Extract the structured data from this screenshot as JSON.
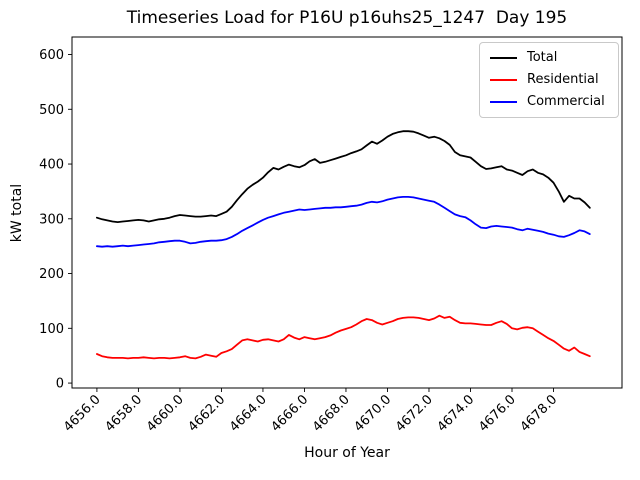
{
  "chart_data": {
    "type": "line",
    "title": "Timeseries Load for P16U p16uhs25_1247  Day 195",
    "xlabel": "Hour of Year",
    "ylabel": "kW total",
    "grid": false,
    "legend_position": "upper right",
    "xlim": [
      4654.8,
      4681.3
    ],
    "ylim": [
      -9,
      632
    ],
    "x_ticks": [
      4656.0,
      4658.0,
      4660.0,
      4662.0,
      4664.0,
      4666.0,
      4668.0,
      4670.0,
      4672.0,
      4674.0,
      4676.0,
      4678.0
    ],
    "x_tick_labels": [
      "4656.0",
      "4658.0",
      "4660.0",
      "4662.0",
      "4664.0",
      "4666.0",
      "4668.0",
      "4670.0",
      "4672.0",
      "4674.0",
      "4676.0",
      "4678.0"
    ],
    "y_ticks": [
      0,
      100,
      200,
      300,
      400,
      500,
      600
    ],
    "y_tick_labels": [
      "0",
      "100",
      "200",
      "300",
      "400",
      "500",
      "600"
    ],
    "x": [
      4656.0,
      4656.25,
      4656.5,
      4656.75,
      4657.0,
      4657.25,
      4657.5,
      4657.75,
      4658.0,
      4658.25,
      4658.5,
      4658.75,
      4659.0,
      4659.25,
      4659.5,
      4659.75,
      4660.0,
      4660.25,
      4660.5,
      4660.75,
      4661.0,
      4661.25,
      4661.5,
      4661.75,
      4662.0,
      4662.25,
      4662.5,
      4662.75,
      4663.0,
      4663.25,
      4663.5,
      4663.75,
      4664.0,
      4664.25,
      4664.5,
      4664.75,
      4665.0,
      4665.25,
      4665.5,
      4665.75,
      4666.0,
      4666.25,
      4666.5,
      4666.75,
      4667.0,
      4667.25,
      4667.5,
      4667.75,
      4668.0,
      4668.25,
      4668.5,
      4668.75,
      4669.0,
      4669.25,
      4669.5,
      4669.75,
      4670.0,
      4670.25,
      4670.5,
      4670.75,
      4671.0,
      4671.25,
      4671.5,
      4671.75,
      4672.0,
      4672.25,
      4672.5,
      4672.75,
      4673.0,
      4673.25,
      4673.5,
      4673.75,
      4674.0,
      4674.25,
      4674.5,
      4674.75,
      4675.0,
      4675.25,
      4675.5,
      4675.75,
      4676.0,
      4676.25,
      4676.5,
      4676.75,
      4677.0,
      4677.25,
      4677.5,
      4677.75,
      4678.0,
      4678.25,
      4678.5,
      4678.75,
      4679.0,
      4679.25,
      4679.5,
      4679.75
    ],
    "series": [
      {
        "name": "Total",
        "color": "#000000",
        "values": [
          302,
          299,
          297,
          295,
          294,
          295,
          296,
          297,
          298,
          297,
          295,
          297,
          299,
          300,
          302,
          305,
          307,
          306,
          305,
          304,
          304,
          305,
          306,
          305,
          309,
          313,
          322,
          334,
          345,
          355,
          362,
          368,
          375,
          385,
          393,
          390,
          395,
          399,
          396,
          394,
          398,
          405,
          409,
          402,
          404,
          407,
          410,
          413,
          416,
          420,
          423,
          427,
          434,
          441,
          437,
          443,
          450,
          455,
          458,
          460,
          460,
          459,
          456,
          452,
          448,
          450,
          447,
          442,
          435,
          422,
          416,
          414,
          412,
          404,
          396,
          391,
          392,
          394,
          396,
          390,
          388,
          384,
          380,
          387,
          390,
          384,
          381,
          375,
          366,
          350,
          331,
          342,
          337,
          337,
          330,
          320
        ]
      },
      {
        "name": "Residential",
        "color": "#ff0000",
        "values": [
          53,
          49,
          47,
          46,
          46,
          46,
          45,
          46,
          46,
          47,
          46,
          45,
          46,
          46,
          45,
          46,
          47,
          49,
          46,
          45,
          48,
          52,
          50,
          48,
          55,
          58,
          62,
          70,
          78,
          80,
          78,
          76,
          79,
          80,
          78,
          76,
          80,
          88,
          83,
          80,
          84,
          82,
          80,
          82,
          84,
          87,
          92,
          96,
          99,
          102,
          107,
          113,
          117,
          115,
          110,
          107,
          110,
          113,
          117,
          119,
          120,
          120,
          119,
          117,
          115,
          118,
          123,
          119,
          121,
          115,
          110,
          109,
          109,
          108,
          107,
          106,
          106,
          110,
          113,
          108,
          100,
          98,
          101,
          102,
          100,
          94,
          88,
          82,
          77,
          70,
          63,
          59,
          65,
          57,
          53,
          49
        ]
      },
      {
        "name": "Commercial",
        "color": "#0000ff",
        "values": [
          250,
          249,
          250,
          249,
          250,
          251,
          250,
          251,
          252,
          253,
          254,
          255,
          257,
          258,
          259,
          260,
          260,
          258,
          255,
          256,
          258,
          259,
          260,
          260,
          261,
          263,
          267,
          272,
          278,
          283,
          288,
          293,
          298,
          302,
          305,
          308,
          311,
          313,
          315,
          317,
          316,
          317,
          318,
          319,
          320,
          320,
          321,
          321,
          322,
          323,
          324,
          326,
          329,
          331,
          330,
          332,
          335,
          337,
          339,
          340,
          340,
          339,
          337,
          335,
          333,
          331,
          326,
          320,
          314,
          308,
          305,
          303,
          297,
          290,
          284,
          283,
          286,
          287,
          286,
          285,
          284,
          281,
          279,
          282,
          280,
          278,
          276,
          273,
          271,
          268,
          267,
          270,
          274,
          279,
          277,
          272
        ]
      }
    ]
  }
}
